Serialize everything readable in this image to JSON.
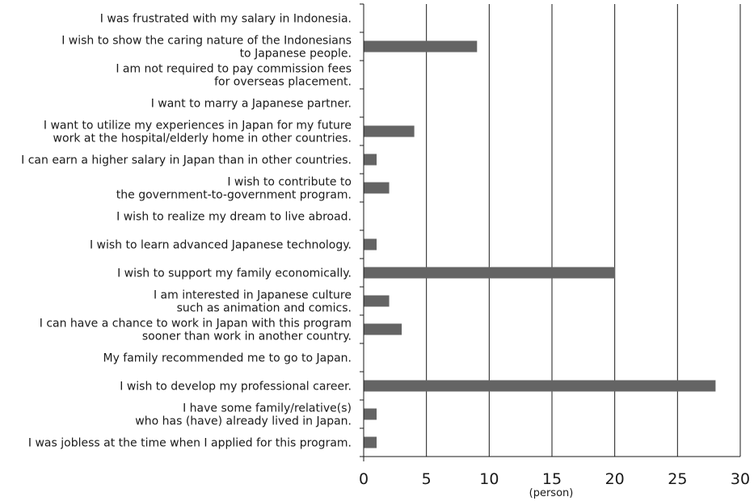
{
  "chart_data": {
    "type": "bar",
    "orientation": "horizontal",
    "title": "",
    "xlabel": "(person)",
    "ylabel": "",
    "xlim": [
      0,
      30
    ],
    "xticks": [
      0,
      5,
      10,
      15,
      20,
      25,
      30
    ],
    "grid": true,
    "bar_color": "#646464",
    "categories": [
      [
        "I was frustrated with my salary in Indonesia."
      ],
      [
        "I wish to show the caring nature of the Indonesians",
        "to Japanese people."
      ],
      [
        "I am not required to pay commission fees",
        "for overseas placement."
      ],
      [
        "I want to marry a Japanese partner."
      ],
      [
        "I want to utilize my experiences in Japan for my future",
        "work at the hospital/elderly home in other countries."
      ],
      [
        "I can earn a higher salary in Japan than in other countries."
      ],
      [
        "I wish to contribute to",
        "the government-to-government program."
      ],
      [
        "I wish to realize my dream to live abroad."
      ],
      [
        "I wish to learn advanced Japanese technology."
      ],
      [
        "I wish to support my family economically."
      ],
      [
        "I am interested in Japanese culture",
        "such as animation and comics."
      ],
      [
        "I can have a chance to work in Japan with this program",
        "sooner than work in another country."
      ],
      [
        "My family recommended me to go to Japan."
      ],
      [
        "I wish to develop my professional career."
      ],
      [
        "I have some family/relative(s)",
        "who has (have) already lived in Japan."
      ],
      [
        "I was jobless at the time when I applied for this program."
      ]
    ],
    "values": [
      0,
      9,
      0,
      0,
      4,
      1,
      2,
      0,
      1,
      20,
      2,
      3,
      0,
      28,
      1,
      1
    ]
  }
}
